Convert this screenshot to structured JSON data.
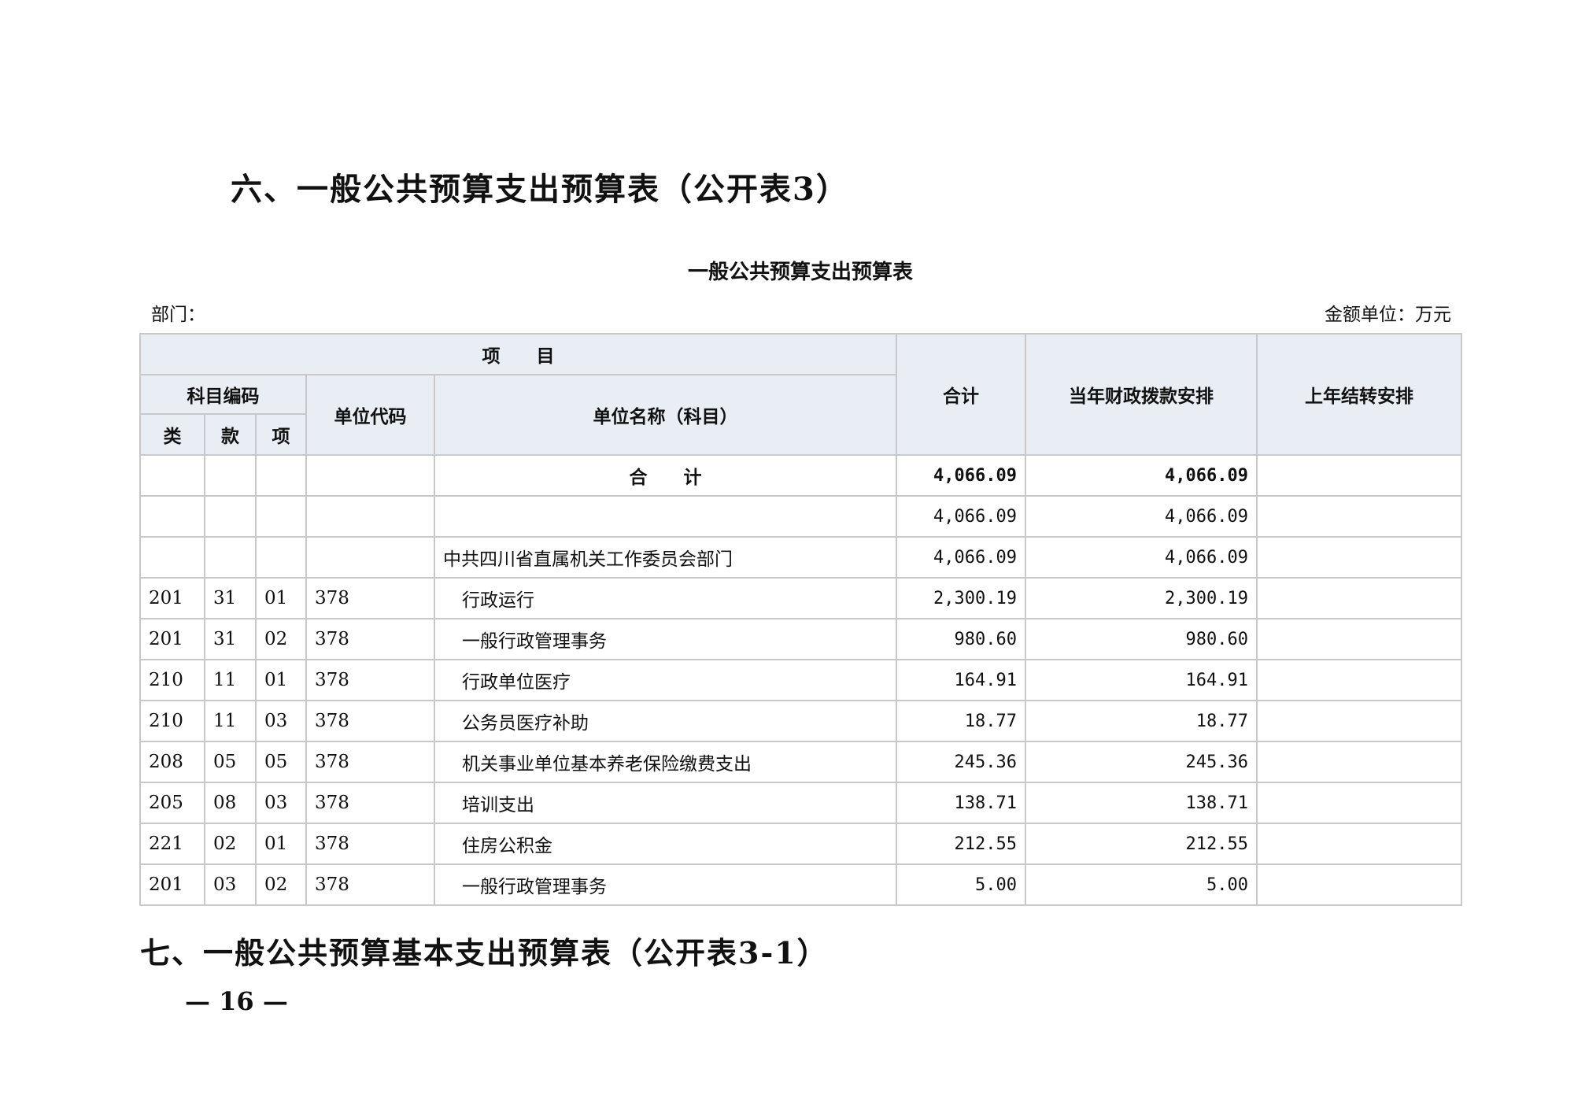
{
  "title": "六、一般公共预算支出预算表（公开表3）",
  "subtitle": "一般公共预算支出预算表",
  "dept_label": "部门：",
  "unit_label": "金额单位：万元",
  "headers": {
    "item": "项　　目",
    "code": "科目编码",
    "lei": "类",
    "kuan": "款",
    "xiang": "项",
    "unit_code": "单位代码",
    "unit_name": "单位名称（科目）",
    "total": "合计",
    "current": "当年财政拨款安排",
    "carry": "上年结转安排"
  },
  "rows": [
    {
      "lei": "",
      "kuan": "",
      "xiang": "",
      "code": "",
      "name": "合　　计",
      "total": "4,066.09",
      "current": "4,066.09",
      "carry": ""
    },
    {
      "lei": "",
      "kuan": "",
      "xiang": "",
      "code": "",
      "name": "",
      "total": "4,066.09",
      "current": "4,066.09",
      "carry": ""
    },
    {
      "lei": "",
      "kuan": "",
      "xiang": "",
      "code": "",
      "name": "中共四川省直属机关工作委员会部门",
      "total": "4,066.09",
      "current": "4,066.09",
      "carry": ""
    },
    {
      "lei": "201",
      "kuan": "31",
      "xiang": "01",
      "code": "378",
      "name": "行政运行",
      "total": "2,300.19",
      "current": "2,300.19",
      "carry": ""
    },
    {
      "lei": "201",
      "kuan": "31",
      "xiang": "02",
      "code": "378",
      "name": "一般行政管理事务",
      "total": "980.60",
      "current": "980.60",
      "carry": ""
    },
    {
      "lei": "210",
      "kuan": "11",
      "xiang": "01",
      "code": "378",
      "name": "行政单位医疗",
      "total": "164.91",
      "current": "164.91",
      "carry": ""
    },
    {
      "lei": "210",
      "kuan": "11",
      "xiang": "03",
      "code": "378",
      "name": "公务员医疗补助",
      "total": "18.77",
      "current": "18.77",
      "carry": ""
    },
    {
      "lei": "208",
      "kuan": "05",
      "xiang": "05",
      "code": "378",
      "name": "机关事业单位基本养老保险缴费支出",
      "total": "245.36",
      "current": "245.36",
      "carry": ""
    },
    {
      "lei": "205",
      "kuan": "08",
      "xiang": "03",
      "code": "378",
      "name": "培训支出",
      "total": "138.71",
      "current": "138.71",
      "carry": ""
    },
    {
      "lei": "221",
      "kuan": "02",
      "xiang": "01",
      "code": "378",
      "name": "住房公积金",
      "total": "212.55",
      "current": "212.55",
      "carry": ""
    },
    {
      "lei": "201",
      "kuan": "03",
      "xiang": "02",
      "code": "378",
      "name": "一般行政管理事务",
      "total": "5.00",
      "current": "5.00",
      "carry": ""
    }
  ],
  "next_section": "七、一般公共预算基本支出预算表（公开表3-1）",
  "page_number": "— 16 —"
}
